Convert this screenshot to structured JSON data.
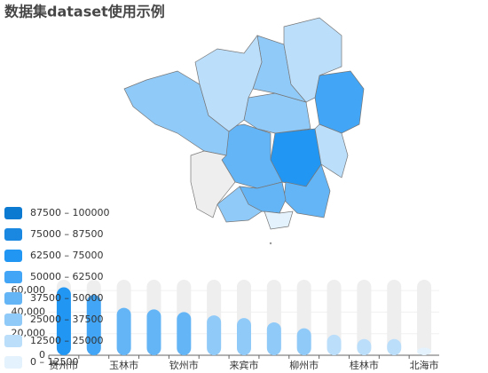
{
  "chart_data": {
    "type": "bar",
    "title": "数据集dataset使用示例",
    "categories": [
      "贵州市",
      null,
      "玉林市",
      null,
      "钦州市",
      null,
      "来宾市",
      null,
      "柳州市",
      null,
      "桂林市",
      null,
      "北海市"
    ],
    "values": [
      63000,
      56000,
      44000,
      42500,
      40000,
      37000,
      34500,
      30500,
      25000,
      19000,
      15000,
      15000,
      7000
    ],
    "ylim": [
      0,
      70000
    ],
    "yticks": [
      0,
      {
        "value": 20000,
        "label": "20,000"
      },
      {
        "value": 40000,
        "label": "40,000"
      },
      {
        "value": 60000,
        "label": "60,000"
      }
    ],
    "grid": true,
    "background_color": "#eeeeee",
    "visual_map": [
      {
        "min": 87500,
        "max": 100000,
        "label": "87500 – 100000",
        "color": "#0d7ad1"
      },
      {
        "min": 75000,
        "max": 87500,
        "label": "75000 – 87500",
        "color": "#1a88e0"
      },
      {
        "min": 62500,
        "max": 75000,
        "label": "62500 – 75000",
        "color": "#2196f3"
      },
      {
        "min": 50000,
        "max": 62500,
        "label": "50000 – 62500",
        "color": "#42a5f5"
      },
      {
        "min": 37500,
        "max": 50000,
        "label": "37500 – 50000",
        "color": "#64b5f6"
      },
      {
        "min": 25000,
        "max": 37500,
        "label": "25000 – 37500",
        "color": "#90caf9"
      },
      {
        "min": 12500,
        "max": 25000,
        "label": "12500 – 25000",
        "color": "#bbdefb"
      },
      {
        "min": 0,
        "max": 12500,
        "label": "0 – 12500",
        "color": "#e3f2fd"
      }
    ]
  }
}
